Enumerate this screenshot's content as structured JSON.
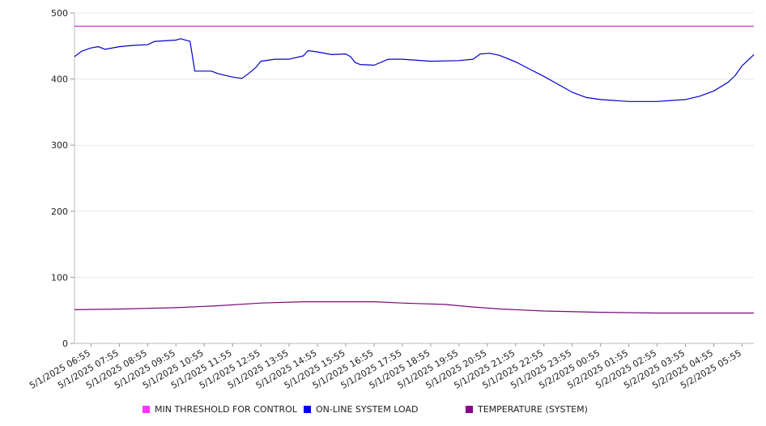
{
  "chart_data": {
    "type": "line",
    "ylim": [
      0,
      500
    ],
    "yticks": [
      0,
      100,
      200,
      300,
      400,
      500
    ],
    "grid": true,
    "legend_position": "bottom",
    "x_tick_labels": [
      "5/1/2025 06:55",
      "5/1/2025 07:55",
      "5/1/2025 08:55",
      "5/1/2025 09:55",
      "5/1/2025 10:55",
      "5/1/2025 11:55",
      "5/1/2025 12:55",
      "5/1/2025 13:55",
      "5/1/2025 14:55",
      "5/1/2025 15:55",
      "5/1/2025 16:55",
      "5/1/2025 17:55",
      "5/1/2025 18:55",
      "5/1/2025 19:55",
      "5/1/2025 20:55",
      "5/1/2025 21:55",
      "5/1/2025 22:55",
      "5/1/2025 23:55",
      "5/2/2025 00:55",
      "5/2/2025 01:55",
      "5/2/2025 02:55",
      "5/2/2025 03:55",
      "5/2/2025 04:55",
      "5/2/2025 05:55"
    ],
    "x_start": "5/1/2025 06:20",
    "x_end": "5/2/2025 06:20",
    "series": [
      {
        "name": "MIN THRESHOLD FOR CONTROL",
        "color": "#cc22cc",
        "points": [
          [
            "5/1/2025 06:20",
            480
          ],
          [
            "5/2/2025 06:20",
            480
          ]
        ]
      },
      {
        "name": "ON-LINE SYSTEM LOAD",
        "color": "#0000cc",
        "points": [
          [
            "5/1/2025 06:20",
            434
          ],
          [
            "5/1/2025 06:35",
            442
          ],
          [
            "5/1/2025 06:55",
            447
          ],
          [
            "5/1/2025 07:10",
            449
          ],
          [
            "5/1/2025 07:25",
            445
          ],
          [
            "5/1/2025 07:55",
            449
          ],
          [
            "5/1/2025 08:25",
            451
          ],
          [
            "5/1/2025 08:55",
            452
          ],
          [
            "5/1/2025 09:10",
            457
          ],
          [
            "5/1/2025 09:55",
            459
          ],
          [
            "5/1/2025 10:05",
            461
          ],
          [
            "5/1/2025 10:25",
            457
          ],
          [
            "5/1/2025 10:35",
            412
          ],
          [
            "5/1/2025 11:10",
            412
          ],
          [
            "5/1/2025 11:25",
            408
          ],
          [
            "5/1/2025 11:55",
            403
          ],
          [
            "5/1/2025 12:15",
            401
          ],
          [
            "5/1/2025 12:30",
            409
          ],
          [
            "5/1/2025 12:45",
            418
          ],
          [
            "5/1/2025 12:55",
            427
          ],
          [
            "5/1/2025 13:25",
            430
          ],
          [
            "5/1/2025 13:55",
            430
          ],
          [
            "5/1/2025 14:25",
            435
          ],
          [
            "5/1/2025 14:35",
            443
          ],
          [
            "5/1/2025 14:55",
            441
          ],
          [
            "5/1/2025 15:25",
            437
          ],
          [
            "5/1/2025 15:55",
            438
          ],
          [
            "5/1/2025 16:05",
            434
          ],
          [
            "5/1/2025 16:15",
            425
          ],
          [
            "5/1/2025 16:25",
            422
          ],
          [
            "5/1/2025 16:55",
            421
          ],
          [
            "5/1/2025 17:25",
            430
          ],
          [
            "5/1/2025 17:55",
            430
          ],
          [
            "5/1/2025 18:55",
            427
          ],
          [
            "5/1/2025 19:55",
            428
          ],
          [
            "5/1/2025 20:25",
            430
          ],
          [
            "5/1/2025 20:40",
            438
          ],
          [
            "5/1/2025 21:00",
            439
          ],
          [
            "5/1/2025 21:20",
            436
          ],
          [
            "5/1/2025 21:55",
            426
          ],
          [
            "5/1/2025 22:25",
            415
          ],
          [
            "5/1/2025 22:55",
            404
          ],
          [
            "5/1/2025 23:25",
            392
          ],
          [
            "5/1/2025 23:55",
            380
          ],
          [
            "5/2/2025 00:25",
            372
          ],
          [
            "5/2/2025 00:55",
            369
          ],
          [
            "5/2/2025 01:55",
            366
          ],
          [
            "5/2/2025 02:55",
            366
          ],
          [
            "5/2/2025 03:55",
            369
          ],
          [
            "5/2/2025 04:25",
            374
          ],
          [
            "5/2/2025 04:55",
            382
          ],
          [
            "5/2/2025 05:25",
            395
          ],
          [
            "5/2/2025 05:40",
            405
          ],
          [
            "5/2/2025 05:55",
            420
          ],
          [
            "5/2/2025 06:10",
            430
          ],
          [
            "5/2/2025 06:20",
            437
          ]
        ]
      },
      {
        "name": "TEMPERATURE (SYSTEM)",
        "color": "#7a0a7a",
        "points": [
          [
            "5/1/2025 06:20",
            51
          ],
          [
            "5/1/2025 07:55",
            52
          ],
          [
            "5/1/2025 09:55",
            54
          ],
          [
            "5/1/2025 11:25",
            57
          ],
          [
            "5/1/2025 12:55",
            61
          ],
          [
            "5/1/2025 14:25",
            63
          ],
          [
            "5/1/2025 15:55",
            63
          ],
          [
            "5/1/2025 16:55",
            63
          ],
          [
            "5/1/2025 17:55",
            61
          ],
          [
            "5/1/2025 19:25",
            59
          ],
          [
            "5/1/2025 20:25",
            55
          ],
          [
            "5/1/2025 21:25",
            52
          ],
          [
            "5/1/2025 22:55",
            49
          ],
          [
            "5/2/2025 00:55",
            47
          ],
          [
            "5/2/2025 02:55",
            46
          ],
          [
            "5/2/2025 06:20",
            46
          ]
        ]
      }
    ]
  }
}
